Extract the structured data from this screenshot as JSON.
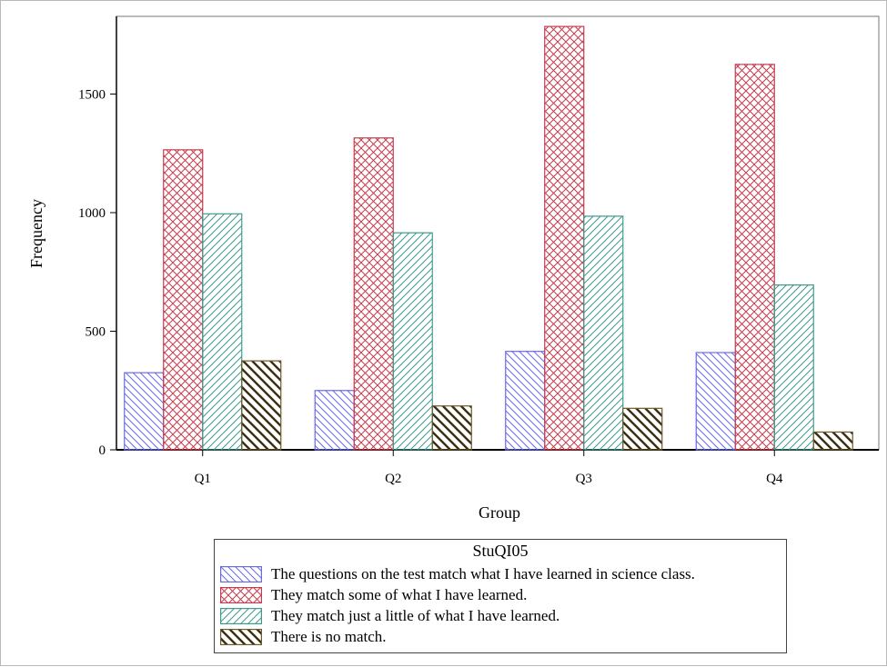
{
  "chart_data": {
    "type": "bar",
    "xlabel": "Group",
    "ylabel": "Frequency",
    "categories": [
      "Q1",
      "Q2",
      "Q3",
      "Q4"
    ],
    "ylim": [
      0,
      1800
    ],
    "yticks": [
      0,
      500,
      1000,
      1500
    ],
    "grid": false,
    "legend_position": "bottom",
    "legend_title": "StuQI05",
    "series": [
      {
        "name": "The questions on the test match what I have learned in science class.",
        "values": [
          325,
          250,
          415,
          410
        ],
        "color": "#6a6ae6",
        "pattern": "diagonal-left"
      },
      {
        "name": "They match some of what I have learned.",
        "values": [
          1265,
          1315,
          1785,
          1625
        ],
        "color": "#c43c4e",
        "pattern": "crosshatch"
      },
      {
        "name": "They match just a little of what I have learned.",
        "values": [
          995,
          915,
          985,
          695
        ],
        "color": "#3f9a8c",
        "pattern": "diagonal-right"
      },
      {
        "name": "There is no match.",
        "values": [
          375,
          185,
          175,
          75
        ],
        "color": "#6b5a2c",
        "pattern": "diagonal-left-heavy"
      }
    ]
  }
}
